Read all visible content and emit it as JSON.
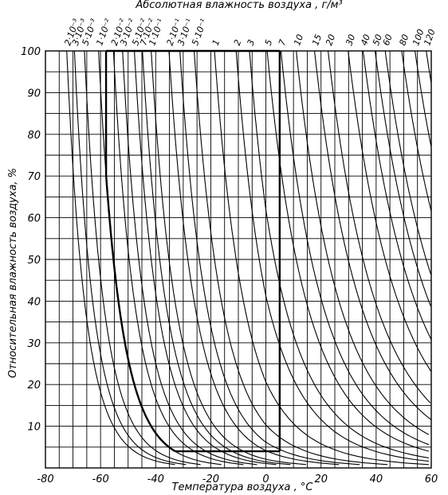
{
  "chart_data": {
    "type": "line",
    "title": "Абсолютная влажность воздуха , г/м³",
    "xlabel": "Температура воздуха , °C",
    "ylabel": "Относительная влажность воздуха, %",
    "xlim": [
      -80,
      60
    ],
    "ylim": [
      0,
      100
    ],
    "x_ticks": [
      -80,
      -60,
      -40,
      -20,
      0,
      20,
      40,
      60
    ],
    "y_ticks": [
      10,
      20,
      30,
      40,
      50,
      60,
      70,
      80,
      90,
      100
    ],
    "grid": true,
    "absolute_humidity_curves_g_per_m3": [
      {
        "label": "2·10⁻³",
        "value": 0.002
      },
      {
        "label": "3·10⁻³",
        "value": 0.003
      },
      {
        "label": "5·10⁻³",
        "value": 0.005
      },
      {
        "label": "1·10⁻²",
        "value": 0.01
      },
      {
        "label": "2·10⁻²",
        "value": 0.02
      },
      {
        "label": "3·10⁻²",
        "value": 0.03
      },
      {
        "label": "5·10⁻²",
        "value": 0.05
      },
      {
        "label": "7·10⁻²",
        "value": 0.07
      },
      {
        "label": "1·10⁻¹",
        "value": 0.1
      },
      {
        "label": "2·10⁻¹",
        "value": 0.2
      },
      {
        "label": "3·10⁻¹",
        "value": 0.3
      },
      {
        "label": "5·10⁻¹",
        "value": 0.5
      },
      {
        "label": "1",
        "value": 1
      },
      {
        "label": "2",
        "value": 2
      },
      {
        "label": "3",
        "value": 3
      },
      {
        "label": "5",
        "value": 5
      },
      {
        "label": "7",
        "value": 7
      },
      {
        "label": "10",
        "value": 10
      },
      {
        "label": "15",
        "value": 15
      },
      {
        "label": "20",
        "value": 20
      },
      {
        "label": "30",
        "value": 30
      },
      {
        "label": "40",
        "value": 40
      },
      {
        "label": "50",
        "value": 50
      },
      {
        "label": "60",
        "value": 60
      },
      {
        "label": "80",
        "value": 80
      },
      {
        "label": "100",
        "value": 100
      },
      {
        "label": "120",
        "value": 120
      }
    ],
    "highlighted_region": {
      "x": [
        -58,
        5
      ],
      "y": [
        4,
        100
      ],
      "boundary_curve_g_per_m3": 0.01
    }
  }
}
